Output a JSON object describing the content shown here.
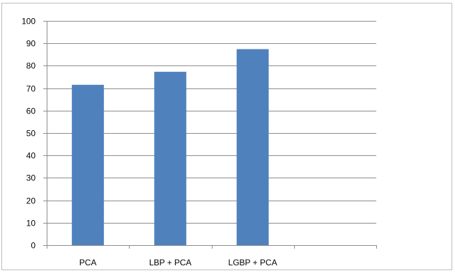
{
  "chart_data": {
    "type": "bar",
    "categories": [
      "PCA",
      "LBP + PCA",
      "LGBP + PCA",
      ""
    ],
    "values": [
      71.5,
      77.3,
      87.4,
      null
    ],
    "title": "",
    "xlabel": "",
    "ylabel": "",
    "ylim": [
      0,
      100
    ],
    "yticks": [
      0,
      10,
      20,
      30,
      40,
      50,
      60,
      70,
      80,
      90,
      100
    ],
    "ytick_labels": [
      "0",
      "10",
      "20",
      "30",
      "40",
      "50",
      "60",
      "70",
      "80",
      "90",
      "100"
    ],
    "grid": "horizontal",
    "legend": "none",
    "colors": {
      "bar": "#4f81bd",
      "bar_edge": "#3d6ea8",
      "grid": "#8c8c8c",
      "axis": "#8c8c8c",
      "frame": "#bdbdbd"
    }
  }
}
